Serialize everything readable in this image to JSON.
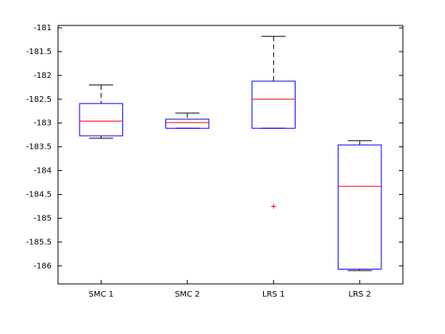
{
  "chart_data": {
    "type": "boxplot",
    "categories": [
      "SMC 1",
      "SMC 2",
      "LRS 1",
      "LRS 2"
    ],
    "whisker_high": [
      -182.2,
      -182.79,
      -181.18,
      -183.37
    ],
    "q3": [
      -182.59,
      -182.92,
      -182.12,
      -183.46
    ],
    "median": [
      -182.96,
      -182.99,
      -182.5,
      -184.33
    ],
    "q1": [
      -183.27,
      -183.11,
      -183.11,
      -186.07
    ],
    "whisker_low": [
      -183.32,
      -183.11,
      -183.11,
      -186.1
    ],
    "outliers": [
      [],
      [],
      [
        -184.75
      ],
      []
    ],
    "box_color": "#0000ff",
    "median_color": "#ff0000",
    "whisker_color": "#000000",
    "outlier_color": "#ff0000",
    "ylim": [
      -186.38,
      -180.95
    ],
    "yticks": [
      -181,
      -181.5,
      -182,
      -182.5,
      -183,
      -183.5,
      -184,
      -184.5,
      -185,
      -185.5,
      -186
    ]
  }
}
